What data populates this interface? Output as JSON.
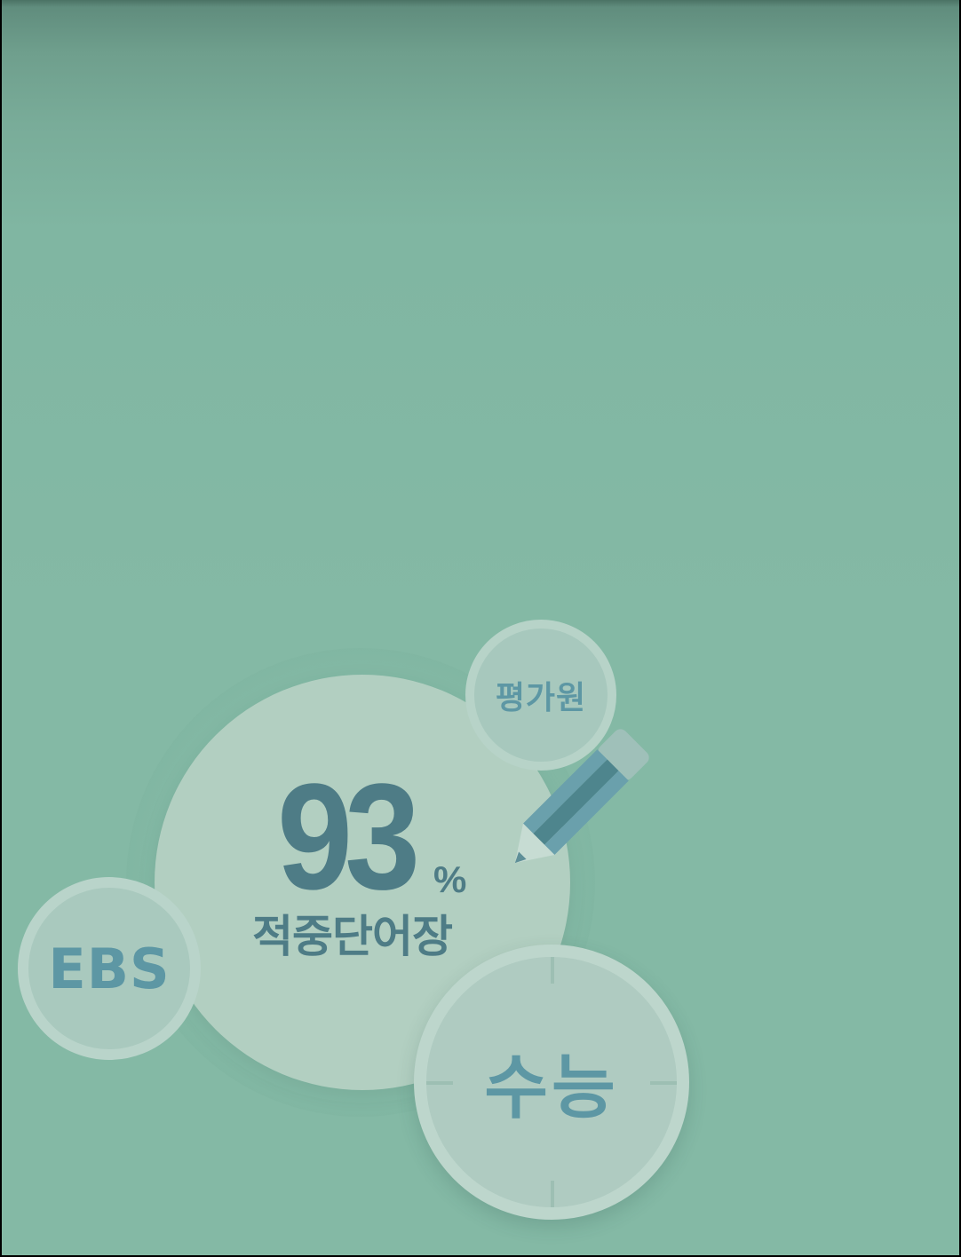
{
  "splash": {
    "percent_value": "93",
    "percent_sign": "%",
    "subtitle": "적중단어장",
    "badges": {
      "eval": "평가원",
      "ebs": "EBS",
      "suneung": "수능"
    }
  },
  "colors": {
    "background": "#84b9a5",
    "main_bubble": "#b2cfc1",
    "text_dark": "#4e7c86",
    "text_light": "#5d97a4"
  },
  "icons": [
    "pencil-icon"
  ]
}
